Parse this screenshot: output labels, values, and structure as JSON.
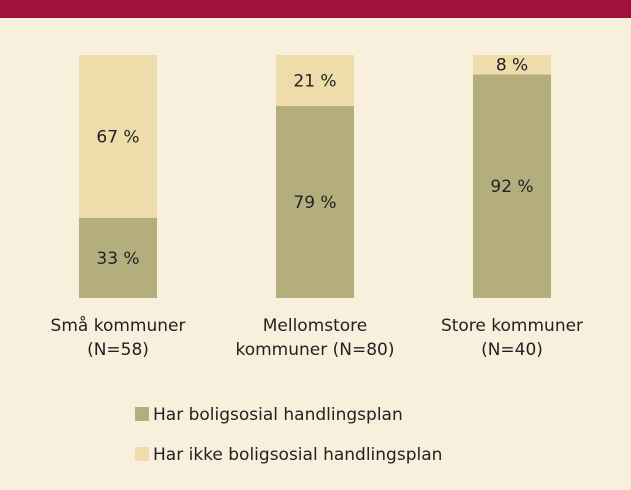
{
  "chart_data": {
    "type": "stacked_bar",
    "categories": [
      [
        "Små kommuner",
        "(N=58)"
      ],
      [
        "Mellomstore",
        "kommuner (N=80)"
      ],
      [
        "Store kommuner",
        "(N=40)"
      ]
    ],
    "series": [
      {
        "name": "Har boligsosial handlingsplan",
        "color": "#b4ae7e",
        "values": [
          33,
          79,
          92
        ],
        "value_labels": [
          "33 %",
          "79 %",
          "92 %"
        ]
      },
      {
        "name": "Har ikke boligsosial handlingsplan",
        "color": "#eedcaa",
        "values": [
          67,
          21,
          8
        ],
        "value_labels": [
          "67 %",
          "21 %",
          "8 %"
        ]
      }
    ]
  }
}
